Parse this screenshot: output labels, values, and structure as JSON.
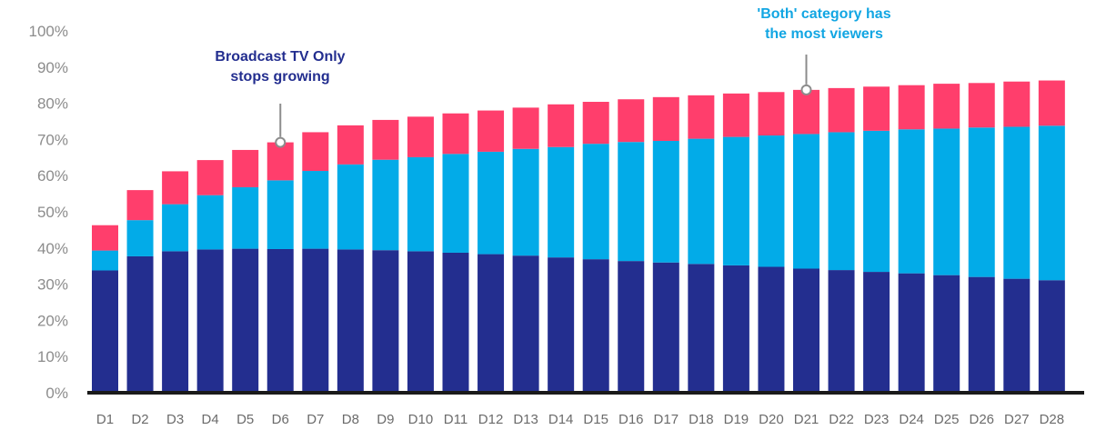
{
  "chart_data": {
    "type": "bar",
    "stacked": true,
    "categories": [
      "D1",
      "D2",
      "D3",
      "D4",
      "D5",
      "D6",
      "D7",
      "D8",
      "D9",
      "D10",
      "D11",
      "D12",
      "D13",
      "D14",
      "D15",
      "D16",
      "D17",
      "D18",
      "D19",
      "D20",
      "D21",
      "D22",
      "D23",
      "D24",
      "D25",
      "D26",
      "D27",
      "D28"
    ],
    "yticks": [
      "0%",
      "10%",
      "20%",
      "30%",
      "40%",
      "50%",
      "60%",
      "70%",
      "80%",
      "90%",
      "100%"
    ],
    "ylim": [
      0,
      100
    ],
    "series": [
      {
        "color": "#232e8f",
        "values": [
          33.8,
          37.7,
          39.1,
          39.6,
          39.8,
          39.7,
          39.8,
          39.6,
          39.4,
          39.1,
          38.7,
          38.3,
          37.9,
          37.4,
          36.9,
          36.4,
          36.0,
          35.6,
          35.2,
          34.8,
          34.3,
          33.9,
          33.4,
          33.0,
          32.5,
          32.0,
          31.5,
          31.1
        ]
      },
      {
        "color": "#02abe8",
        "values": [
          5.5,
          10.0,
          13.0,
          15.0,
          17.0,
          19.0,
          21.5,
          23.5,
          25.0,
          26.0,
          27.3,
          28.3,
          29.5,
          30.5,
          31.9,
          32.9,
          33.6,
          34.6,
          35.5,
          36.3,
          37.2,
          38.1,
          39.0,
          39.8,
          40.5,
          41.3,
          42.0,
          42.7
        ]
      },
      {
        "color": "#ff3e6c",
        "values": [
          7.0,
          8.3,
          9.1,
          9.7,
          10.3,
          10.5,
          10.7,
          10.8,
          11.0,
          11.2,
          11.2,
          11.4,
          11.4,
          11.8,
          11.6,
          11.8,
          12.1,
          12.0,
          12.0,
          12.0,
          12.2,
          12.2,
          12.2,
          12.2,
          12.4,
          12.3,
          12.5,
          12.5
        ]
      }
    ],
    "annotations": [
      {
        "lines": [
          "Broadcast TV Only",
          "stops growing"
        ],
        "category": "D6",
        "series_index": 2,
        "color": "#232e8f"
      },
      {
        "lines": [
          "'Both' category has",
          "the most viewers"
        ],
        "category": "D21",
        "series_index": 2,
        "color": "#12a6e3"
      }
    ]
  }
}
